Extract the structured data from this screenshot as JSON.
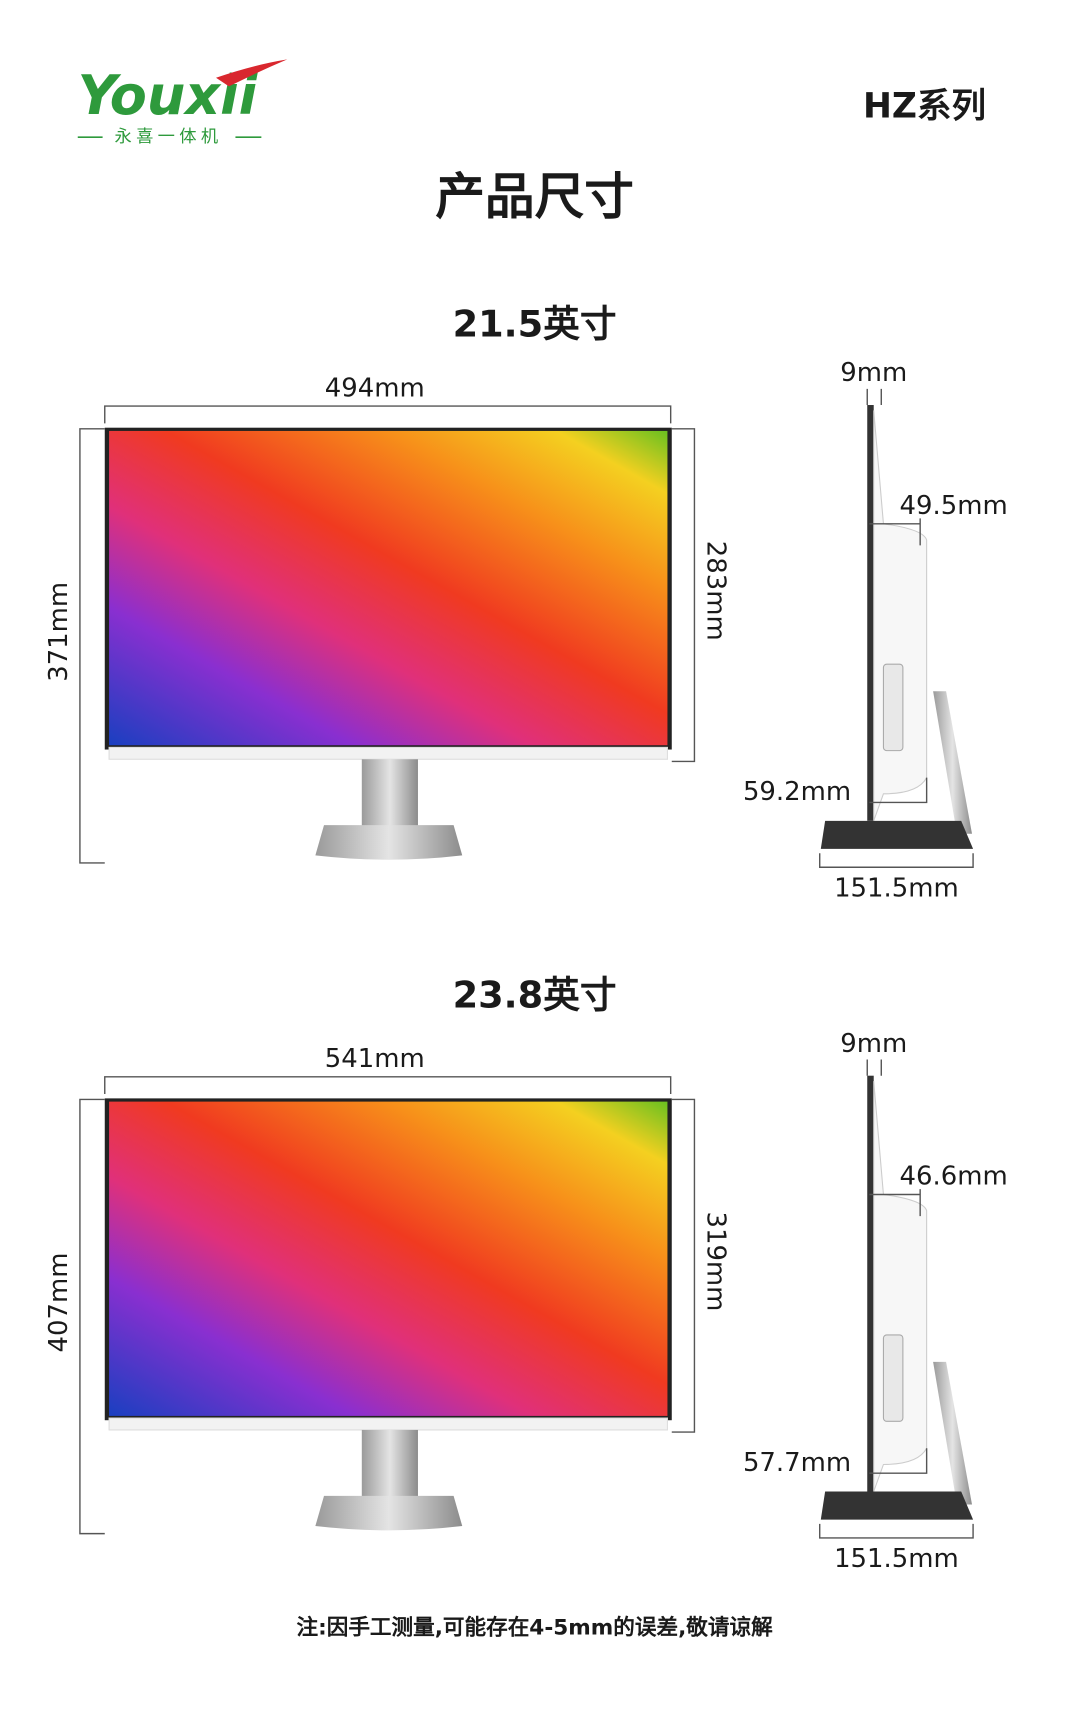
{
  "header": {
    "brand": "Youxii",
    "brand_subtitle": "永喜一体机",
    "series": "HZ系列",
    "title": "产品尺寸"
  },
  "sections": [
    {
      "title": "21.5英寸",
      "width": "494mm",
      "height": "371mm",
      "screen_height": "283mm",
      "thickness": "9mm",
      "body_depth": "49.5mm",
      "bottom_depth": "59.2mm",
      "base_depth": "151.5mm"
    },
    {
      "title": "23.8英寸",
      "width": "541mm",
      "height": "407mm",
      "screen_height": "319mm",
      "thickness": "9mm",
      "body_depth": "46.6mm",
      "bottom_depth": "57.7mm",
      "base_depth": "151.5mm"
    }
  ],
  "note": "注:因手工测量,可能存在4-5mm的误差,敬请谅解"
}
